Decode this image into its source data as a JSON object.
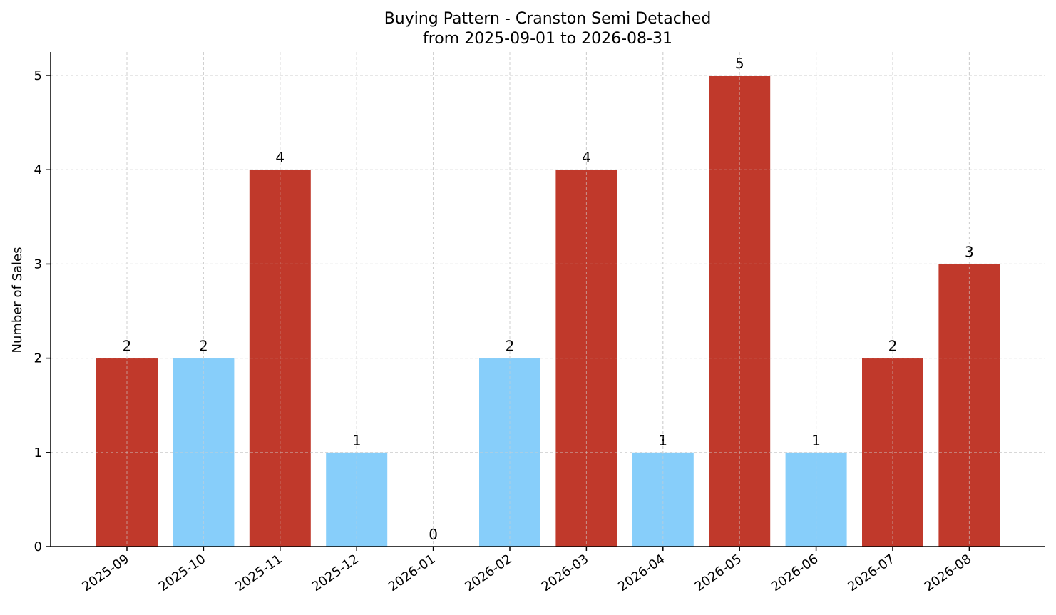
{
  "chart_data": {
    "type": "bar",
    "title": "Buying Pattern - Cranston Semi Detached",
    "subtitle": "from 2025-09-01 to 2026-08-31",
    "xlabel": "",
    "ylabel": "Number of Sales",
    "categories": [
      "2025-09",
      "2025-10",
      "2025-11",
      "2025-12",
      "2026-01",
      "2026-02",
      "2026-03",
      "2026-04",
      "2026-05",
      "2026-06",
      "2026-07",
      "2026-08"
    ],
    "values": [
      2,
      2,
      4,
      1,
      0,
      2,
      4,
      1,
      5,
      1,
      2,
      3
    ],
    "bar_colors": [
      "#c0392b",
      "#87cefa",
      "#c0392b",
      "#87cefa",
      "#87cefa",
      "#87cefa",
      "#c0392b",
      "#87cefa",
      "#c0392b",
      "#87cefa",
      "#c0392b",
      "#c0392b"
    ],
    "yticks": [
      0,
      1,
      2,
      3,
      4,
      5
    ],
    "ylim": [
      0,
      5.25
    ],
    "grid": true,
    "legend": "none"
  }
}
